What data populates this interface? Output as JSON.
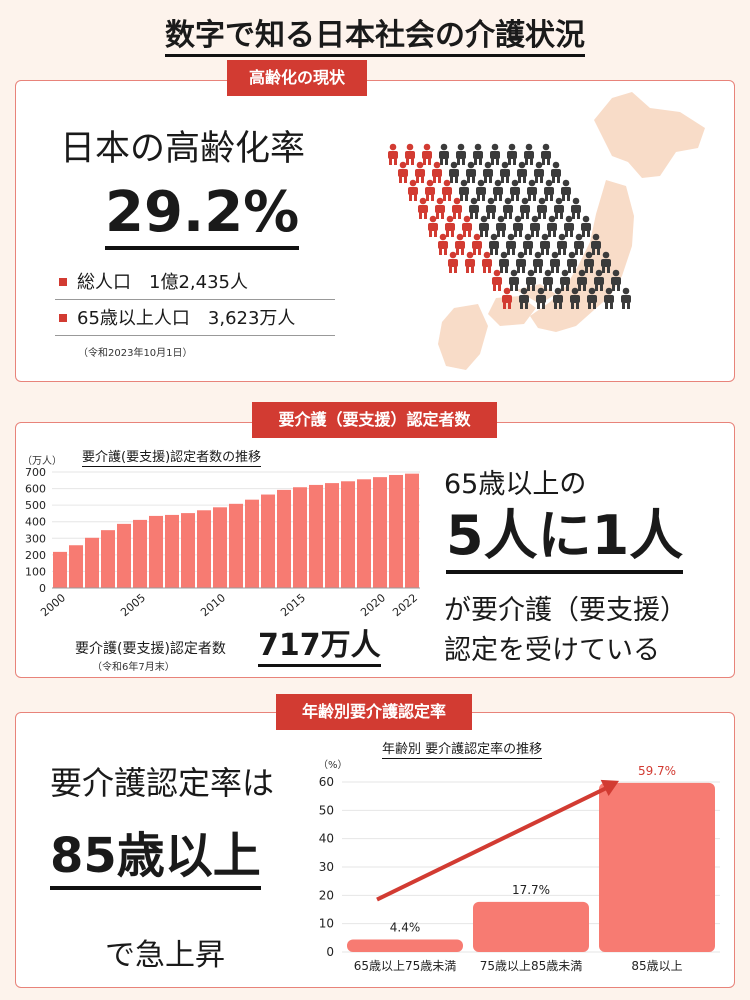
{
  "page_title": "数字で知る日本社会の介護状況",
  "section1": {
    "tag": "高齢化の現状",
    "heading": "日本の高齢化率",
    "rate": "29.2%",
    "stats": [
      {
        "label": "総人口",
        "value": "1億2,435人"
      },
      {
        "label": "65歳以上人口",
        "value": "3,623万人"
      }
    ],
    "note": "（令和2023年10月1日）"
  },
  "section2": {
    "tag": "要介護（要支援）認定者数",
    "unit": "（万人）",
    "chart_title": "要介護(要支援)認定者数の推移",
    "total_label": "要介護(要支援)認定者数",
    "total_value": "717万人",
    "total_note": "（令和6年7月末）",
    "right_line1": "65歳以上の",
    "right_big": "5人に1人",
    "right_line3": "が要介護（要支援）",
    "right_line4": "認定を受けている"
  },
  "section3": {
    "tag": "年齢別要介護認定率",
    "line1": "要介護認定率は",
    "big": "85歳以上",
    "line3": "で急上昇",
    "unit": "（%）",
    "chart_title": "年齢別 要介護認定率の推移"
  },
  "colors": {
    "accent": "#d23b32",
    "bar": "#f77b72",
    "person_dark": "#3b3b3b",
    "map": "#f8dcc8"
  },
  "chart_data": [
    {
      "type": "bar",
      "title": "要介護(要支援)認定者数の推移",
      "ylabel": "（万人）",
      "ylim": [
        0,
        700
      ],
      "yticks": [
        0,
        100,
        200,
        300,
        400,
        500,
        600,
        700
      ],
      "categories": [
        "2000",
        "2001",
        "2002",
        "2003",
        "2004",
        "2005",
        "2006",
        "2007",
        "2008",
        "2009",
        "2010",
        "2011",
        "2012",
        "2013",
        "2014",
        "2015",
        "2016",
        "2017",
        "2018",
        "2019",
        "2020",
        "2021",
        "2022"
      ],
      "x_tick_labels": [
        "2000",
        "2005",
        "2010",
        "2015",
        "2020",
        "2022"
      ],
      "values": [
        218,
        258,
        303,
        349,
        387,
        411,
        435,
        441,
        452,
        469,
        487,
        508,
        533,
        564,
        592,
        608,
        622,
        633,
        644,
        656,
        669,
        682,
        690
      ]
    },
    {
      "type": "bar",
      "title": "年齢別 要介護認定率の推移",
      "ylabel": "（%）",
      "ylim": [
        0,
        60
      ],
      "yticks": [
        0,
        10,
        20,
        30,
        40,
        50,
        60
      ],
      "categories": [
        "65歳以上75歳未満",
        "75歳以上85歳未満",
        "85歳以上"
      ],
      "values": [
        4.4,
        17.7,
        59.7
      ],
      "data_labels": [
        "4.4%",
        "17.7%",
        "59.7%"
      ]
    }
  ]
}
